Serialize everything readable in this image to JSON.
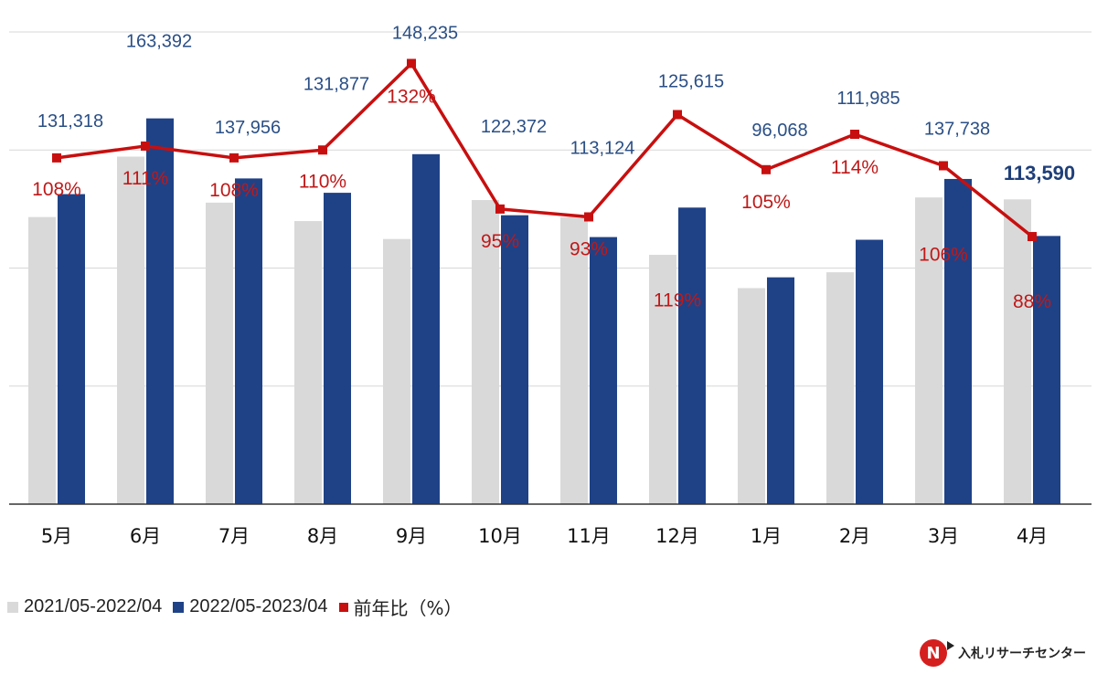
{
  "chart_data": {
    "type": "bar",
    "categories": [
      "5月",
      "6月",
      "7月",
      "8月",
      "9月",
      "10月",
      "11月",
      "12月",
      "1月",
      "2月",
      "3月",
      "4月"
    ],
    "series": [
      {
        "name": "2021/05-2022/04",
        "type": "bar",
        "color": "#d9d9d9",
        "values": [
          121600,
          147200,
          127700,
          119900,
          112300,
          128800,
          121600,
          105600,
          91500,
          98200,
          129900,
          129100
        ]
      },
      {
        "name": "2022/05-2023/04",
        "type": "bar",
        "color": "#1f4287",
        "values": [
          131318,
          163392,
          137956,
          131877,
          148235,
          122372,
          113124,
          125615,
          96068,
          111985,
          137738,
          113590
        ],
        "labels": [
          "131,318",
          "163,392",
          "137,956",
          "131,877",
          "148,235",
          "122,372",
          "113,124",
          "125,615",
          "96,068",
          "111,985",
          "137,738",
          "113,590"
        ]
      },
      {
        "name": "前年比（%）",
        "type": "line",
        "color": "#c80f0f",
        "values": [
          108,
          111,
          108,
          110,
          132,
          95,
          93,
          119,
          105,
          114,
          106,
          88
        ],
        "labels": [
          "108%",
          "111%",
          "108%",
          "110%",
          "132%",
          "95%",
          "93%",
          "119%",
          "105%",
          "114%",
          "106%",
          "88%"
        ]
      }
    ],
    "ylim": [
      0,
      200000
    ],
    "y2lim": [
      20,
      140
    ],
    "grid": true,
    "legend": "bottom-left",
    "title": "",
    "xlabel": "",
    "ylabel": ""
  },
  "legend": {
    "items": [
      {
        "label": "2021/05-2022/04",
        "color": "#d9d9d9"
      },
      {
        "label": "2022/05-2023/04",
        "color": "#1f4287"
      },
      {
        "label": "前年比（%）",
        "color": "#c80f0f"
      }
    ]
  },
  "brand": {
    "logo_letter": "N",
    "name": "入札リサーチセンター"
  }
}
